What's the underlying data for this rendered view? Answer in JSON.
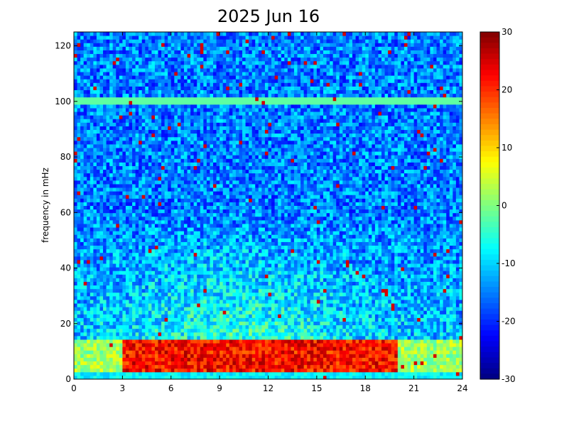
{
  "chart_data": {
    "type": "heatmap",
    "title": "2025 Jun 16",
    "xlabel": "",
    "ylabel": "frequency in mHz",
    "xlim": [
      0,
      24
    ],
    "ylim": [
      0,
      125
    ],
    "xticks": [
      "0",
      "3",
      "6",
      "9",
      "12",
      "15",
      "18",
      "21",
      "24"
    ],
    "yticks": [
      "0",
      "20",
      "40",
      "60",
      "80",
      "100",
      "120"
    ],
    "colorbar": {
      "colormap": "jet",
      "range": [
        -30,
        30
      ],
      "ticks": [
        "30",
        "20",
        "10",
        "0",
        "-10",
        "-20",
        "-30"
      ]
    },
    "grid": false,
    "features": {
      "constant_line_frequency_mHz": 100,
      "constant_line_level": -2,
      "strong_low_frequency_band_mHz": [
        2,
        14
      ],
      "strong_band_hours": [
        3,
        20
      ],
      "strong_band_level": 22,
      "moderate_energy_max_frequency_mHz": 60,
      "moderate_energy_level": 0,
      "background_level": -15
    }
  }
}
